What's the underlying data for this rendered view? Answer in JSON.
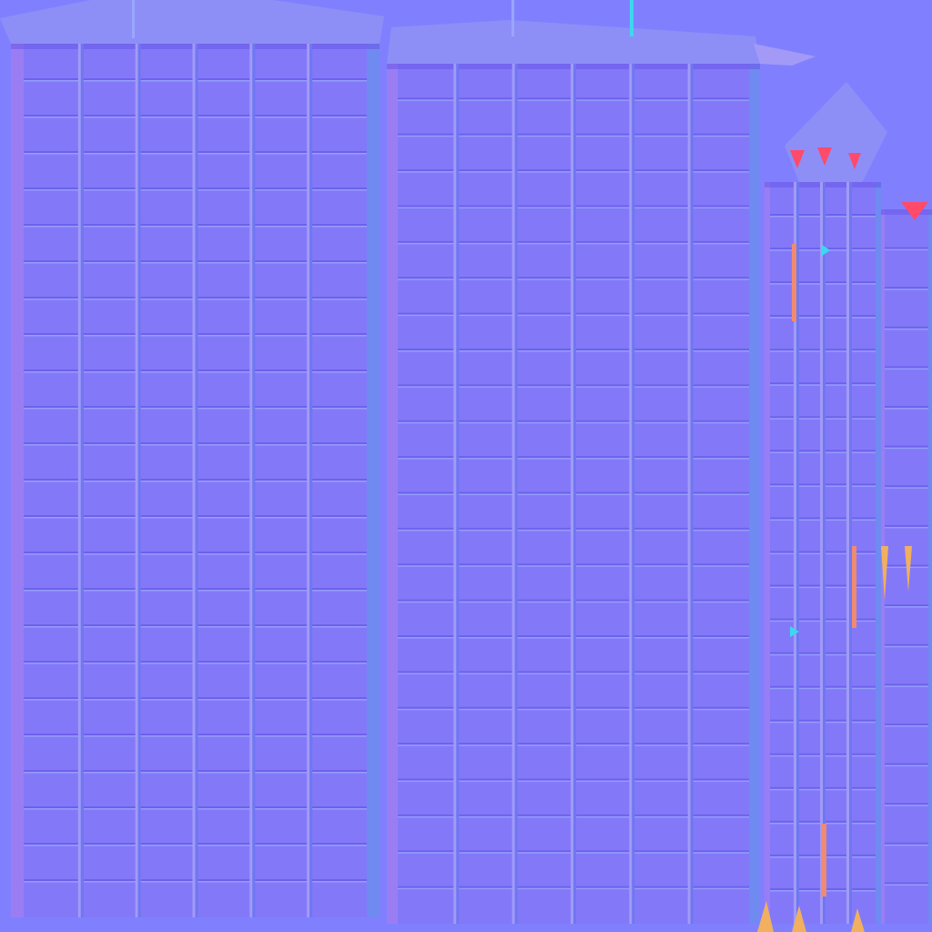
{
  "texture": {
    "kind": "normal-map",
    "subject": "brick-tower-facades",
    "colors": {
      "background": "#8080ff",
      "face": "#8379f8",
      "face_alt": "#8a7cfb",
      "mortar_light": "#9aa6ff",
      "mortar_dark": "#6a5ae8",
      "edge_left": "#a07ef2",
      "edge_right": "#6c8df0",
      "pillar_light": "#a39af7",
      "pillar_dark": "#6e78f0",
      "roof": "#8d8ff7",
      "accent_red": "#ff4a6a",
      "accent_orange": "#f08a70",
      "accent_cyan": "#3fd6f0",
      "accent_yellow": "#f0b060"
    },
    "panels": [
      {
        "name": "facade-left",
        "columns": 6,
        "rows": 24
      },
      {
        "name": "facade-center",
        "columns": 6,
        "rows": 24
      },
      {
        "name": "tower-right",
        "columns": 4,
        "rows": 22
      },
      {
        "name": "edge-strip",
        "columns": 1,
        "rows": 18
      }
    ]
  }
}
